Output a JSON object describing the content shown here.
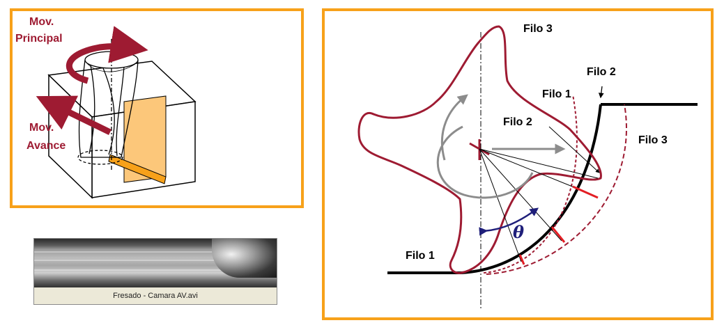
{
  "left_panel": {
    "label_principal_1": "Mov.",
    "label_principal_2": "Principal",
    "label_avance_1": "Mov.",
    "label_avance_2": "Avance"
  },
  "right_panel": {
    "filo3_top": "Filo 3",
    "filo2_right": "Filo 2",
    "filo1_mid": "Filo 1",
    "filo2_mid": "Filo 2",
    "filo3_right": "Filo 3",
    "filo1_bottom": "Filo 1",
    "theta": "θ"
  },
  "video": {
    "caption": "Fresado - Camara AV.avi"
  },
  "colors": {
    "frame": "#f7a11a",
    "arrow_red": "#9e1b32",
    "tool_outline": "#9e1b32",
    "chip_orange": "#f7a11a",
    "workpiece_face": "#fcc77a",
    "thickness_marks": "#e31e24",
    "theta_arrow": "#1f1f7a",
    "rotation_arrow": "#8c8c8c"
  }
}
